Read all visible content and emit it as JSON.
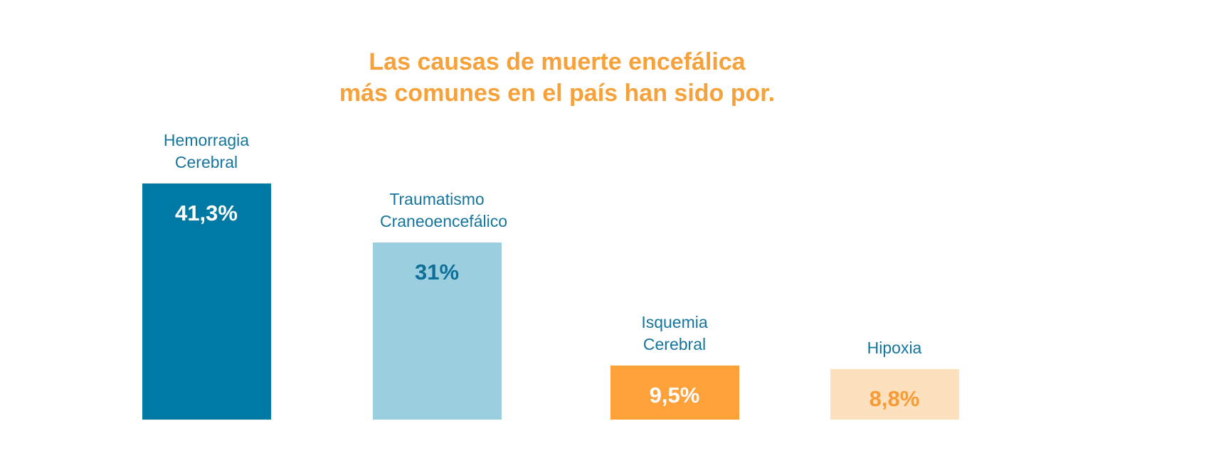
{
  "chart_data": {
    "type": "bar",
    "title": [
      "Las causas de muerte encefálica",
      "más comunes en el país han sido por."
    ],
    "categories": [
      "Hemorragia Cerebral",
      "Traumatismo Craneoencefálico",
      "Isquemia Cerebral",
      "Hipoxia"
    ],
    "values": [
      41.3,
      31,
      9.5,
      8.8
    ],
    "value_labels": [
      "41,3%",
      "31%",
      "9,5%",
      "8,8%"
    ],
    "colors": [
      "#0079a4",
      "#9bcfe0",
      "#fea138",
      "#fde0bd"
    ],
    "label_colors": [
      "#ffffff",
      "#0e6f98",
      "#ffffff",
      "#f89b35"
    ]
  }
}
